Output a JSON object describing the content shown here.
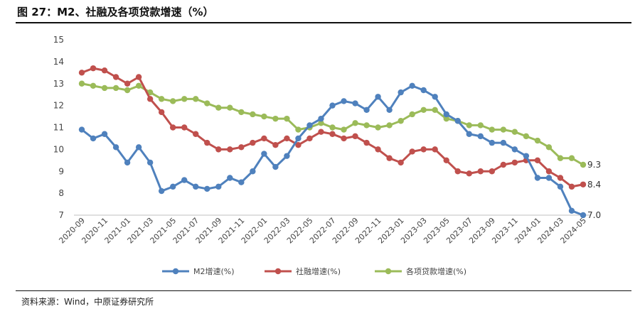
{
  "header": {
    "title": "图 27：M2、社融及各项贷款增速（%）",
    "source": "资料来源：Wind，中原证券研究所"
  },
  "chart_data": {
    "type": "line",
    "title": "",
    "xlabel": "",
    "ylabel": "",
    "ylim": [
      7,
      15
    ],
    "yticks": [
      "7",
      "8",
      "9",
      "10",
      "11",
      "12",
      "13",
      "14",
      "15"
    ],
    "grid": false,
    "legend_position": "bottom-center",
    "x": [
      "2020-09",
      "2020-10",
      "2020-11",
      "2020-12",
      "2021-01",
      "2021-02",
      "2021-03",
      "2021-04",
      "2021-05",
      "2021-06",
      "2021-07",
      "2021-08",
      "2021-09",
      "2021-10",
      "2021-11",
      "2021-12",
      "2022-01",
      "2022-02",
      "2022-03",
      "2022-04",
      "2022-05",
      "2022-06",
      "2022-07",
      "2022-08",
      "2022-09",
      "2022-10",
      "2022-11",
      "2022-12",
      "2023-01",
      "2023-02",
      "2023-03",
      "2023-04",
      "2023-05",
      "2023-06",
      "2023-07",
      "2023-08",
      "2023-09",
      "2023-10",
      "2023-11",
      "2023-12",
      "2024-01",
      "2024-02",
      "2024-03",
      "2024-04",
      "2024-05"
    ],
    "xticks": [
      "2020-09",
      "2020-11",
      "2021-01",
      "2021-03",
      "2021-05",
      "2021-07",
      "2021-09",
      "2021-11",
      "2022-01",
      "2022-03",
      "2022-05",
      "2022-07",
      "2022-09",
      "2022-11",
      "2023-01",
      "2023-03",
      "2023-05",
      "2023-07",
      "2023-09",
      "2023-11",
      "2024-01",
      "2024-03",
      "2024-05"
    ],
    "series": [
      {
        "name": "M2增速(%)",
        "color": "#4f81bd",
        "values": [
          10.9,
          10.5,
          10.7,
          10.1,
          9.4,
          10.1,
          9.4,
          8.1,
          8.3,
          8.6,
          8.3,
          8.2,
          8.3,
          8.7,
          8.5,
          9.0,
          9.8,
          9.2,
          9.7,
          10.5,
          11.1,
          11.4,
          12.0,
          12.2,
          12.1,
          11.8,
          12.4,
          11.8,
          12.6,
          12.9,
          12.7,
          12.4,
          11.6,
          11.3,
          10.7,
          10.6,
          10.3,
          10.3,
          10.0,
          9.7,
          8.7,
          8.7,
          8.3,
          7.2,
          7.0
        ],
        "end_label": "7.0"
      },
      {
        "name": "社融增速(%)",
        "color": "#c0504d",
        "values": [
          13.5,
          13.7,
          13.6,
          13.3,
          13.0,
          13.3,
          12.3,
          11.7,
          11.0,
          11.0,
          10.7,
          10.3,
          10.0,
          10.0,
          10.1,
          10.3,
          10.5,
          10.2,
          10.5,
          10.2,
          10.5,
          10.8,
          10.7,
          10.5,
          10.6,
          10.3,
          10.0,
          9.6,
          9.4,
          9.9,
          10.0,
          10.0,
          9.5,
          9.0,
          8.9,
          9.0,
          9.0,
          9.3,
          9.4,
          9.5,
          9.5,
          9.0,
          8.7,
          8.3,
          8.4
        ],
        "end_label": "8.4"
      },
      {
        "name": "各项贷款增速(%)",
        "color": "#9bbb59",
        "values": [
          13.0,
          12.9,
          12.8,
          12.8,
          12.7,
          12.9,
          12.6,
          12.3,
          12.2,
          12.3,
          12.3,
          12.1,
          11.9,
          11.9,
          11.7,
          11.6,
          11.5,
          11.4,
          11.4,
          10.9,
          11.0,
          11.2,
          11.0,
          10.9,
          11.2,
          11.1,
          11.0,
          11.1,
          11.3,
          11.6,
          11.8,
          11.8,
          11.4,
          11.3,
          11.1,
          11.1,
          10.9,
          10.9,
          10.8,
          10.6,
          10.4,
          10.1,
          9.6,
          9.6,
          9.3
        ],
        "end_label": "9.3"
      }
    ]
  }
}
